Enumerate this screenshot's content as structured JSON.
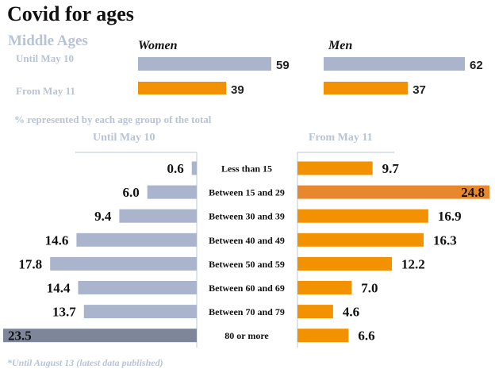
{
  "title": "Covid for ages",
  "subtitle": "Middle Ages",
  "middle_ages": {
    "rows": [
      "Until May 10",
      "From May 11"
    ],
    "women_label": "Women",
    "men_label": "Men"
  },
  "note": "% represented by each age group of the total",
  "footnote": "*Until August 13 (latest data published)",
  "colors": {
    "until": "#aab4cd",
    "until_highlight": "#7d8799",
    "from": "#f39200",
    "from_highlight": "#e8882e"
  },
  "chart_data": [
    {
      "type": "bar",
      "orientation": "horizontal",
      "categories": [
        "Until May 10",
        "From May 11"
      ],
      "series": [
        {
          "name": "Women",
          "values": [
            59,
            39
          ]
        },
        {
          "name": "Men",
          "values": [
            62,
            37
          ]
        }
      ]
    },
    {
      "type": "bar",
      "orientation": "horizontal",
      "layout": "butterfly",
      "categories": [
        "Less than 15",
        "Between 15 and 29",
        "Between 30 and 39",
        "Between 40 and 49",
        "Between 50 and 59",
        "Between 60 and 69",
        "Between 70 and 79",
        "80 or more"
      ],
      "series": [
        {
          "name": "Until May 10",
          "values": [
            0.6,
            6.0,
            9.4,
            14.6,
            17.8,
            14.4,
            13.7,
            23.5
          ],
          "labels": [
            "0.6",
            "6.0",
            "9.4",
            "14.6",
            "17.8",
            "14.4",
            "13.7",
            "23.5"
          ]
        },
        {
          "name": "From May 11",
          "values": [
            9.7,
            24.8,
            16.9,
            16.3,
            12.2,
            7.0,
            4.6,
            6.6
          ],
          "labels": [
            "9.7",
            "24.8",
            "16.9",
            "16.3",
            "12.2",
            "7.0",
            "4.6",
            "6.6"
          ]
        }
      ]
    }
  ]
}
